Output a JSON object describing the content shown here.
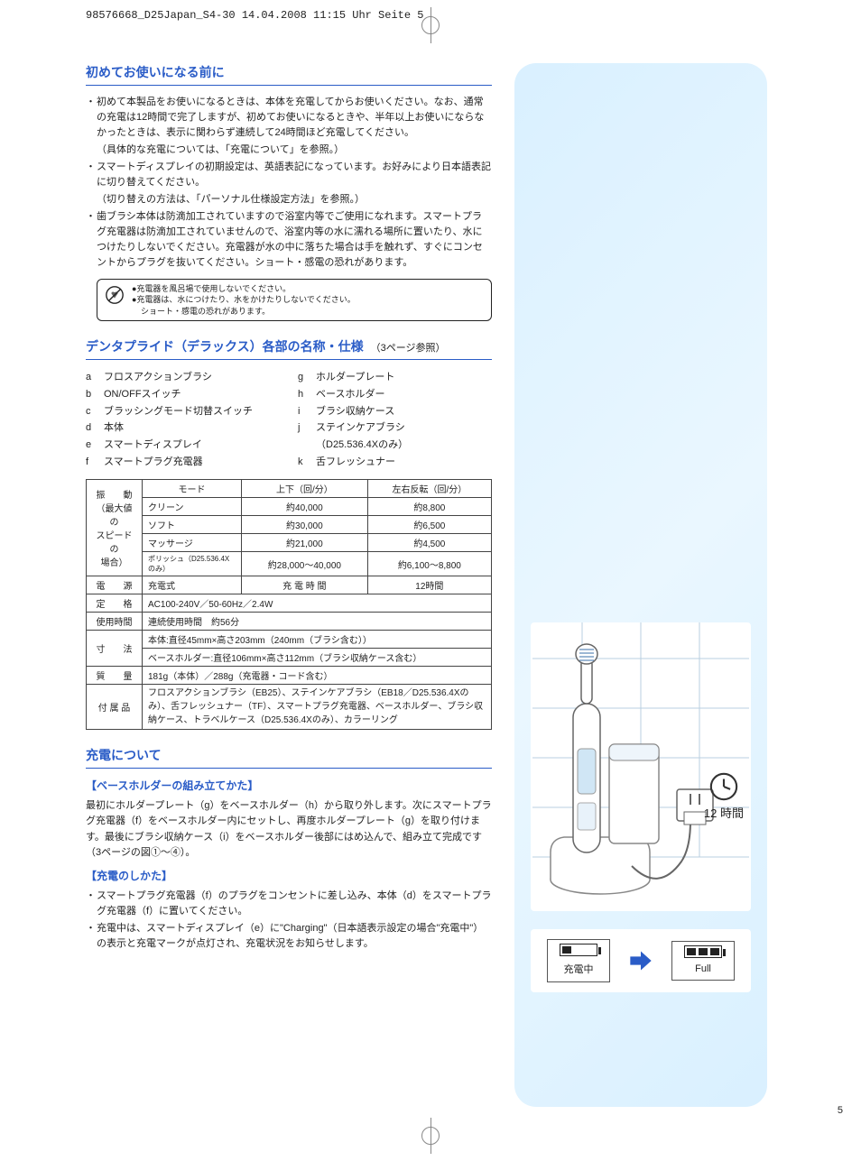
{
  "printHeader": "98576668_D25Japan_S4-30  14.04.2008  11:15 Uhr  Seite 5",
  "pageNumber": "5",
  "section1": {
    "title": "初めてお使いになる前に",
    "bullets": [
      "初めて本製品をお使いになるときは、本体を充電してからお使いください。なお、通常の充電は12時間で完了しますが、初めてお使いになるときや、半年以上お使いにならなかったときは、表示に関わらず連続して24時間ほど充電してください。",
      "スマートディスプレイの初期設定は、英語表記になっています。お好みにより日本語表記に切り替えてください。",
      "歯ブラシ本体は防滴加工されていますので浴室内等でご使用になれます。スマートプラグ充電器は防滴加工されていませんので、浴室内等の水に濡れる場所に置いたり、水につけたりしないでください。充電器が水の中に落ちた場合は手を触れず、すぐにコンセントからプラグを抜いてください。ショート・感電の恐れがあります。"
    ],
    "notes": [
      "（具体的な充電については、「充電について」を参照。）",
      "（切り替えの方法は、「パーソナル仕様設定方法」を参照。）"
    ],
    "warning": {
      "l1": "●充電器を風呂場で使用しないでください。",
      "l2": "●充電器は、水につけたり、水をかけたりしないでください。",
      "l3": "ショート・感電の恐れがあります。"
    }
  },
  "section2": {
    "title": "デンタプライド（デラックス）各部の名称・仕様",
    "suffix": "（3ページ参照）",
    "partsLeft": [
      {
        "k": "a",
        "v": "フロスアクションブラシ"
      },
      {
        "k": "b",
        "v": "ON/OFFスイッチ"
      },
      {
        "k": "c",
        "v": "ブラッシングモード切替スイッチ"
      },
      {
        "k": "d",
        "v": "本体"
      },
      {
        "k": "e",
        "v": "スマートディスプレイ"
      },
      {
        "k": "f",
        "v": "スマートプラグ充電器"
      }
    ],
    "partsRight": [
      {
        "k": "g",
        "v": "ホルダープレート"
      },
      {
        "k": "h",
        "v": "ベースホルダー"
      },
      {
        "k": "i",
        "v": "ブラシ収納ケース"
      },
      {
        "k": "j",
        "v": "ステインケアブラシ"
      },
      {
        "k": "",
        "v": "（D25.536.4Xのみ）"
      },
      {
        "k": "k",
        "v": "舌フレッシュナー"
      }
    ],
    "spec": {
      "modeHeader": "モード",
      "col2": "上下（回/分）",
      "col3": "左右反転（回/分）",
      "rowLabel1": "振　　動\n（最大値の\nスピードの\n場合）",
      "modes": [
        {
          "m": "クリーン",
          "v1": "約40,000",
          "v2": "約8,800"
        },
        {
          "m": "ソフト",
          "v1": "約30,000",
          "v2": "約6,500"
        },
        {
          "m": "マッサージ",
          "v1": "約21,000",
          "v2": "約4,500"
        },
        {
          "m": "ポリッシュ（D25.536.4Xのみ）",
          "v1": "約28,000～40,000",
          "v2": "約6,100～8,800"
        }
      ],
      "rows": [
        {
          "k": "電　　源",
          "v1": "充電式",
          "v2l": "充 電 時 間",
          "v2v": "12時間"
        },
        {
          "k": "定　　格",
          "v": "AC100-240V／50-60Hz／2.4W"
        },
        {
          "k": "使用時間",
          "v": "連続使用時間　約56分"
        },
        {
          "k": "寸　　法",
          "v1": "本体:直径45mm×高さ203mm（240mm（ブラシ含む））",
          "v2": "ベースホルダー:直径106mm×高さ112mm（ブラシ収納ケース含む）"
        },
        {
          "k": "質　　量",
          "v": "181g（本体）／288g（充電器・コード含む）"
        },
        {
          "k": "付 属 品",
          "v": "フロスアクションブラシ（EB25）、ステインケアブラシ（EB18／D25.536.4Xのみ）、舌フレッシュナー（TF）、スマートプラグ充電器、ベースホルダー、ブラシ収納ケース、トラベルケース（D25.536.4Xのみ）、カラーリング"
        }
      ]
    }
  },
  "section3": {
    "title": "充電について",
    "sub1": "【ベースホルダーの組み立てかた】",
    "para1": "最初にホルダープレート（g）をベースホルダー（h）から取り外します。次にスマートプラグ充電器（f）をベースホルダー内にセットし、再度ホルダープレート（g）を取り付けます。最後にブラシ収納ケース（i）をベースホルダー後部にはめ込んで、組み立て完成です（3ページの図①～④）。",
    "sub2": "【充電のしかた】",
    "bullets": [
      "スマートプラグ充電器（f）のプラグをコンセントに差し込み、本体（d）をスマートプラグ充電器（f）に置いてください。",
      "充電中は、スマートディスプレイ（e）に\"Charging\"（日本語表示設定の場合\"充電中\"）の表示と充電マークが点灯され、充電状況をお知らせします。"
    ]
  },
  "illus": {
    "clockLabel": "12 時間",
    "lcd1": "充電中",
    "lcd2": "Full"
  }
}
